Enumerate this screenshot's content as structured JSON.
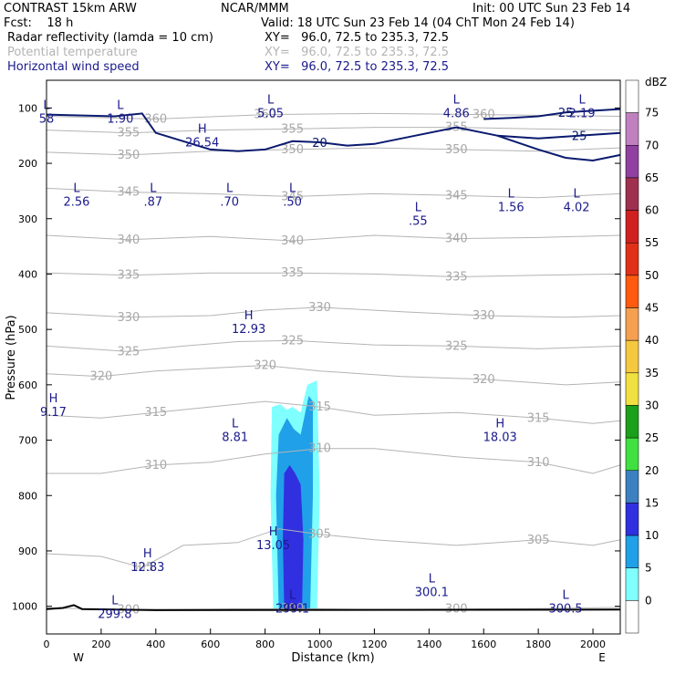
{
  "header": {
    "model": "CONTRAST 15km ARW",
    "org": "NCAR/MMM",
    "init": "Init: 00 UTC Sun 23 Feb 14",
    "fcst": "Fcst:    18 h",
    "valid": "Valid: 18 UTC Sun 23 Feb 14 (04 ChT Mon 24 Feb 14)"
  },
  "fields": [
    {
      "name": "Radar reflectivity (lamda = 10 cm)",
      "xy": "XY=   96.0, 72.5 to 235.3, 72.5",
      "color": "#000000"
    },
    {
      "name": "Potential temperature",
      "xy": "XY=   96.0, 72.5 to 235.3, 72.5",
      "color": "#b4b4b4"
    },
    {
      "name": "Horizontal wind speed",
      "xy": "XY=   96.0, 72.5 to 235.3, 72.5",
      "color": "#1a1a8c"
    }
  ],
  "colorbar": {
    "unit": "dBZ",
    "levels": [
      "75",
      "70",
      "65",
      "60",
      "55",
      "50",
      "45",
      "40",
      "35",
      "30",
      "25",
      "20",
      "15",
      "10",
      "5",
      "0"
    ],
    "colors": [
      "#ffffff",
      "#c080c0",
      "#9040a0",
      "#a03050",
      "#d02020",
      "#e03018",
      "#ff5a10",
      "#f5a050",
      "#f5c840",
      "#f0e040",
      "#1aa01a",
      "#40e040",
      "#3c80c0",
      "#3030e0",
      "#20a0e8",
      "#80ffff",
      "#ffffff"
    ]
  },
  "chart_data": {
    "type": "heatmap",
    "title": "",
    "xlabel": "Distance (km)",
    "ylabel": "Pressure (hPa)",
    "xlim": [
      0,
      2100
    ],
    "ylim": [
      1050,
      50
    ],
    "xticks": [
      "0",
      "200",
      "400",
      "600",
      "800",
      "1000",
      "1200",
      "1400",
      "1600",
      "1800",
      "2000"
    ],
    "yticks": [
      "100",
      "200",
      "300",
      "400",
      "500",
      "600",
      "700",
      "800",
      "900",
      "1000"
    ],
    "x_end_labels": [
      "W",
      "E"
    ],
    "theta_contours": [
      {
        "label": "300",
        "points": [
          [
            0,
            1003
          ],
          [
            300,
            1006
          ],
          [
            600,
            1005
          ],
          [
            900,
            1004
          ],
          [
            1200,
            1006
          ],
          [
            1500,
            1005
          ],
          [
            1800,
            1004
          ],
          [
            2100,
            1002
          ]
        ]
      },
      {
        "label": "305",
        "points": [
          [
            0,
            905
          ],
          [
            200,
            910
          ],
          [
            350,
            930
          ],
          [
            500,
            890
          ],
          [
            700,
            885
          ],
          [
            850,
            860
          ],
          [
            1000,
            870
          ],
          [
            1200,
            880
          ],
          [
            1500,
            890
          ],
          [
            1800,
            880
          ],
          [
            2000,
            890
          ],
          [
            2100,
            880
          ]
        ]
      },
      {
        "label": "310",
        "points": [
          [
            0,
            760
          ],
          [
            200,
            760
          ],
          [
            400,
            745
          ],
          [
            600,
            740
          ],
          [
            800,
            725
          ],
          [
            1000,
            715
          ],
          [
            1200,
            715
          ],
          [
            1500,
            730
          ],
          [
            1800,
            740
          ],
          [
            2000,
            760
          ],
          [
            2100,
            745
          ]
        ]
      },
      {
        "label": "315",
        "points": [
          [
            0,
            655
          ],
          [
            200,
            660
          ],
          [
            400,
            650
          ],
          [
            600,
            640
          ],
          [
            800,
            630
          ],
          [
            1000,
            640
          ],
          [
            1200,
            655
          ],
          [
            1500,
            650
          ],
          [
            1800,
            660
          ],
          [
            2000,
            670
          ],
          [
            2100,
            665
          ]
        ]
      },
      {
        "label": "320",
        "points": [
          [
            0,
            580
          ],
          [
            200,
            585
          ],
          [
            400,
            575
          ],
          [
            600,
            570
          ],
          [
            800,
            565
          ],
          [
            1000,
            575
          ],
          [
            1300,
            585
          ],
          [
            1600,
            590
          ],
          [
            1900,
            600
          ],
          [
            2100,
            595
          ]
        ]
      },
      {
        "label": "325",
        "points": [
          [
            0,
            530
          ],
          [
            300,
            540
          ],
          [
            500,
            530
          ],
          [
            700,
            522
          ],
          [
            900,
            520
          ],
          [
            1200,
            528
          ],
          [
            1500,
            530
          ],
          [
            1800,
            535
          ],
          [
            2100,
            530
          ]
        ]
      },
      {
        "label": "330",
        "points": [
          [
            0,
            470
          ],
          [
            300,
            478
          ],
          [
            600,
            475
          ],
          [
            800,
            465
          ],
          [
            1000,
            460
          ],
          [
            1300,
            468
          ],
          [
            1600,
            475
          ],
          [
            1900,
            478
          ],
          [
            2100,
            475
          ]
        ]
      },
      {
        "label": "335",
        "points": [
          [
            0,
            398
          ],
          [
            300,
            402
          ],
          [
            600,
            398
          ],
          [
            900,
            398
          ],
          [
            1200,
            400
          ],
          [
            1500,
            405
          ],
          [
            1800,
            402
          ],
          [
            2100,
            400
          ]
        ]
      },
      {
        "label": "340",
        "points": [
          [
            0,
            330
          ],
          [
            300,
            338
          ],
          [
            600,
            332
          ],
          [
            900,
            340
          ],
          [
            1200,
            330
          ],
          [
            1500,
            336
          ],
          [
            1800,
            334
          ],
          [
            2100,
            330
          ]
        ]
      },
      {
        "label": "345",
        "points": [
          [
            0,
            245
          ],
          [
            300,
            252
          ],
          [
            600,
            255
          ],
          [
            900,
            260
          ],
          [
            1200,
            255
          ],
          [
            1500,
            258
          ],
          [
            1800,
            262
          ],
          [
            2100,
            255
          ]
        ]
      },
      {
        "label": "350",
        "points": [
          [
            0,
            180
          ],
          [
            300,
            185
          ],
          [
            600,
            178
          ],
          [
            900,
            175
          ],
          [
            1200,
            172
          ],
          [
            1500,
            175
          ],
          [
            1800,
            178
          ],
          [
            2100,
            172
          ]
        ]
      },
      {
        "label": "355",
        "points": [
          [
            0,
            140
          ],
          [
            300,
            145
          ],
          [
            600,
            140
          ],
          [
            900,
            138
          ],
          [
            1200,
            135
          ],
          [
            1500,
            135
          ],
          [
            1800,
            138
          ],
          [
            2100,
            140
          ]
        ]
      },
      {
        "label": "360",
        "points": [
          [
            0,
            115
          ],
          [
            400,
            120
          ],
          [
            800,
            112
          ],
          [
            1200,
            110
          ],
          [
            1600,
            112
          ],
          [
            2100,
            115
          ]
        ]
      }
    ],
    "wind_contours": [
      {
        "label": "20",
        "points": [
          [
            0,
            112
          ],
          [
            250,
            115
          ],
          [
            350,
            110
          ],
          [
            400,
            145
          ],
          [
            500,
            160
          ],
          [
            600,
            175
          ],
          [
            700,
            178
          ],
          [
            800,
            175
          ],
          [
            900,
            160
          ],
          [
            1000,
            162
          ],
          [
            1100,
            168
          ],
          [
            1200,
            165
          ],
          [
            1350,
            150
          ],
          [
            1500,
            135
          ],
          [
            1650,
            150
          ],
          [
            1800,
            175
          ],
          [
            1900,
            190
          ],
          [
            2000,
            195
          ],
          [
            2100,
            185
          ]
        ]
      },
      {
        "label": "25",
        "points": [
          [
            1600,
            120
          ],
          [
            1700,
            118
          ],
          [
            1800,
            115
          ],
          [
            1900,
            108
          ],
          [
            2000,
            105
          ],
          [
            2100,
            102
          ]
        ]
      },
      {
        "label": "25",
        "points": [
          [
            1650,
            150
          ],
          [
            1800,
            155
          ],
          [
            1950,
            150
          ],
          [
            2100,
            145
          ]
        ]
      }
    ],
    "reflectivity": [
      {
        "dbz": 5,
        "polygon": [
          [
            830,
            1007
          ],
          [
            820,
            800
          ],
          [
            825,
            640
          ],
          [
            855,
            635
          ],
          [
            880,
            645
          ],
          [
            900,
            640
          ],
          [
            930,
            650
          ],
          [
            955,
            600
          ],
          [
            990,
            592
          ],
          [
            1000,
            800
          ],
          [
            990,
            1007
          ]
        ]
      },
      {
        "dbz": 10,
        "polygon": [
          [
            850,
            1007
          ],
          [
            840,
            800
          ],
          [
            850,
            690
          ],
          [
            880,
            660
          ],
          [
            905,
            680
          ],
          [
            930,
            690
          ],
          [
            960,
            620
          ],
          [
            975,
            630
          ],
          [
            975,
            800
          ],
          [
            965,
            1007
          ]
        ]
      },
      {
        "dbz": 15,
        "polygon": [
          [
            870,
            1007
          ],
          [
            865,
            880
          ],
          [
            870,
            760
          ],
          [
            890,
            745
          ],
          [
            910,
            760
          ],
          [
            930,
            780
          ],
          [
            940,
            880
          ],
          [
            935,
            1007
          ]
        ]
      }
    ],
    "extrema": [
      {
        "type": "L",
        "value": "58",
        "x": 0,
        "p": 105
      },
      {
        "type": "L",
        "value": "1.90",
        "x": 270,
        "p": 105
      },
      {
        "type": "L",
        "value": "5.05",
        "x": 820,
        "p": 95
      },
      {
        "type": "L",
        "value": "4.86",
        "x": 1500,
        "p": 95
      },
      {
        "type": "L",
        "value": "2.19",
        "x": 1960,
        "p": 95
      },
      {
        "type": "H",
        "value": "26.54",
        "x": 570,
        "p": 148
      },
      {
        "type": "L",
        "value": "2.56",
        "x": 110,
        "p": 255
      },
      {
        "type": "L",
        "value": ".87",
        "x": 390,
        "p": 255
      },
      {
        "type": "L",
        "value": ".70",
        "x": 670,
        "p": 255
      },
      {
        "type": "L",
        "value": ".50",
        "x": 900,
        "p": 255
      },
      {
        "type": "L",
        "value": "1.56",
        "x": 1700,
        "p": 265
      },
      {
        "type": "L",
        "value": "4.02",
        "x": 1940,
        "p": 265
      },
      {
        "type": "L",
        "value": ".55",
        "x": 1360,
        "p": 290
      },
      {
        "type": "H",
        "value": "12.93",
        "x": 740,
        "p": 485
      },
      {
        "type": "H",
        "value": "9.17",
        "x": 25,
        "p": 635
      },
      {
        "type": "L",
        "value": "8.81",
        "x": 690,
        "p": 680
      },
      {
        "type": "H",
        "value": "18.03",
        "x": 1660,
        "p": 680
      },
      {
        "type": "H",
        "value": "13.05",
        "x": 830,
        "p": 875
      },
      {
        "type": "H",
        "value": "12.83",
        "x": 370,
        "p": 915
      },
      {
        "type": "L",
        "value": "300.1",
        "x": 1410,
        "p": 960
      },
      {
        "type": "L",
        "value": "300.5",
        "x": 1900,
        "p": 990
      },
      {
        "type": "L",
        "value": "299.8",
        "x": 250,
        "p": 1000
      },
      {
        "type": "L",
        "value": "299.1",
        "x": 900,
        "p": 990
      }
    ]
  }
}
